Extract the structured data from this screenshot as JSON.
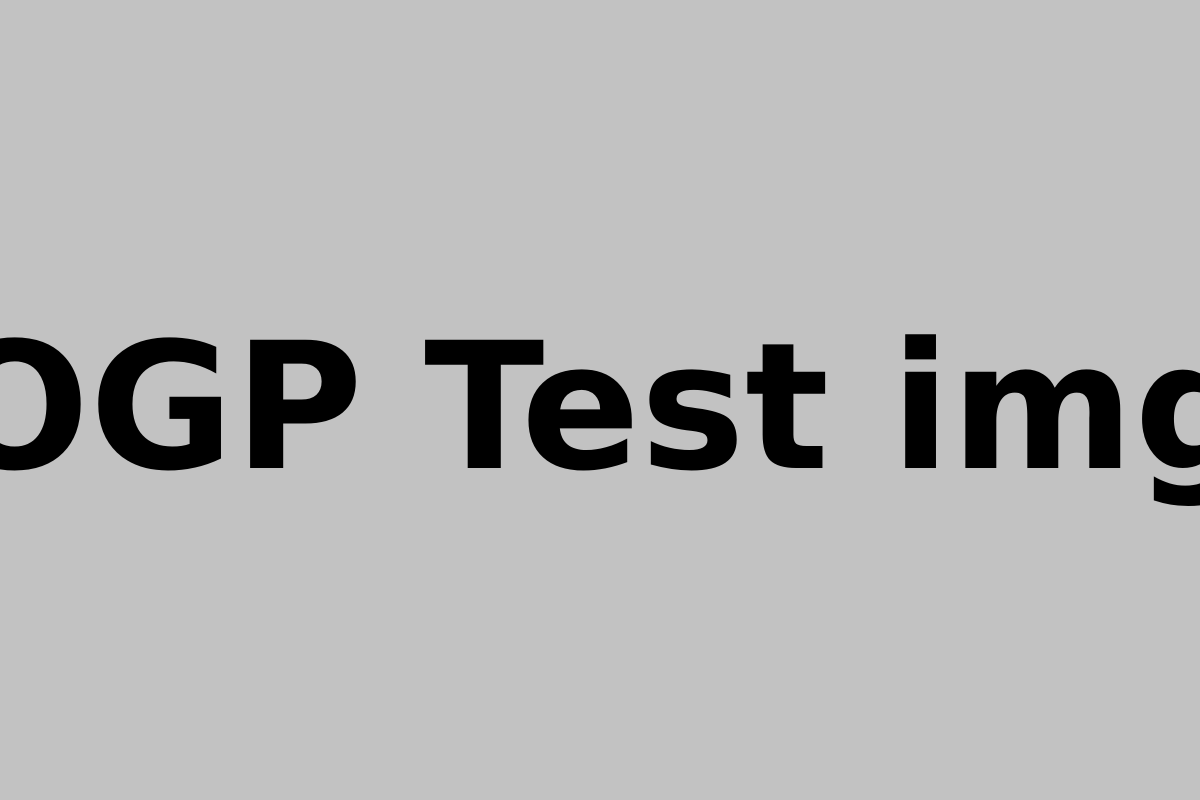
{
  "headline": {
    "text": "OGP Test img"
  },
  "colors": {
    "background": "#c2c2c2",
    "text": "#000000"
  }
}
